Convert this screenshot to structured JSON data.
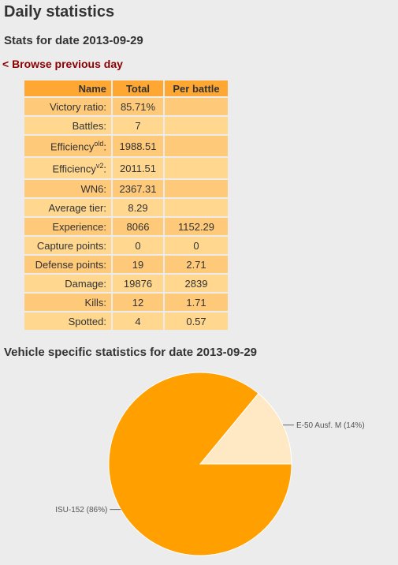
{
  "page": {
    "title": "Daily statistics",
    "subtitle": "Stats for date 2013-09-29",
    "browse_prev": "< Browse previous day",
    "vehicle_title": "Vehicle specific statistics for date 2013-09-29"
  },
  "table": {
    "headers": [
      "Name",
      "Total",
      "Per battle"
    ],
    "rows": [
      {
        "name": "Victory ratio:",
        "total": "85.71%",
        "per": ""
      },
      {
        "name": "Battles:",
        "total": "7",
        "per": ""
      },
      {
        "name": "Efficiency",
        "sup": "old",
        "suffix": ":",
        "total": "1988.51",
        "per": ""
      },
      {
        "name": "Efficiency",
        "sup": "v2",
        "suffix": ":",
        "total": "2011.51",
        "per": ""
      },
      {
        "name": "WN6:",
        "total": "2367.31",
        "per": ""
      },
      {
        "name": "Average tier:",
        "total": "8.29",
        "per": ""
      },
      {
        "name": "Experience:",
        "total": "8066",
        "per": "1152.29"
      },
      {
        "name": "Capture points:",
        "total": "0",
        "per": "0"
      },
      {
        "name": "Defense points:",
        "total": "19",
        "per": "2.71"
      },
      {
        "name": "Damage:",
        "total": "19876",
        "per": "2839"
      },
      {
        "name": "Kills:",
        "total": "12",
        "per": "1.71"
      },
      {
        "name": "Spotted:",
        "total": "4",
        "per": "0.57"
      }
    ]
  },
  "colors": {
    "header": "#ffa733",
    "row_odd": "#ffc97a",
    "row_even": "#ffd78f",
    "link": "#8b0000",
    "slice_main": "#ff9f00",
    "slice_minor": "#ffe9c4"
  },
  "chart_data": {
    "type": "pie",
    "title": "",
    "slices": [
      {
        "label": "ISU-152 (86%)",
        "value": 86,
        "color": "#ff9f00"
      },
      {
        "label": "E-50 Ausf. M (14%)",
        "value": 14,
        "color": "#ffe9c4"
      }
    ]
  }
}
